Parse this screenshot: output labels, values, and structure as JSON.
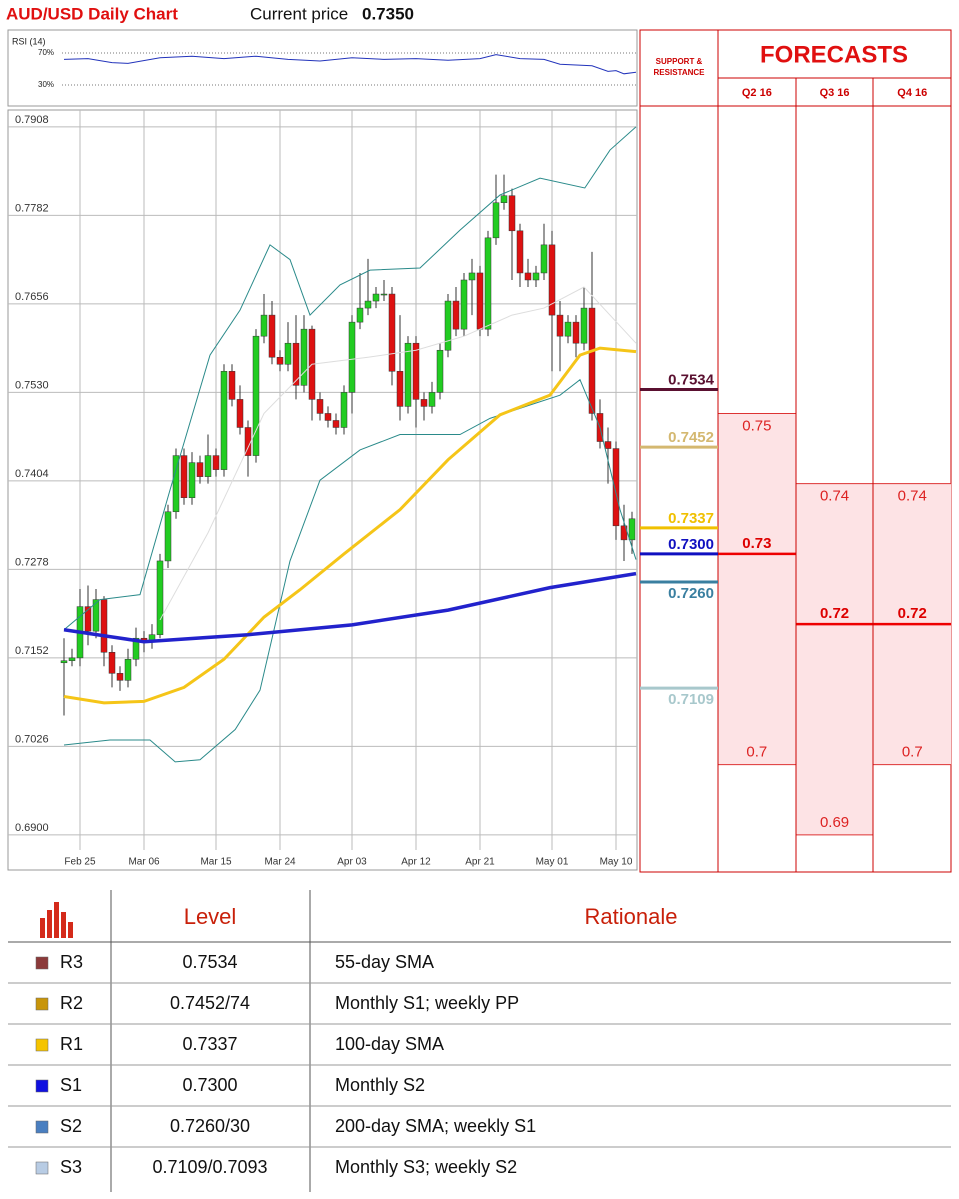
{
  "header": {
    "title": "AUD/USD Daily Chart",
    "price_label": "Current price",
    "price": "0.7350"
  },
  "chart_data": [
    {
      "type": "line",
      "title": "RSI (14)",
      "color": "#2233bb",
      "x": [
        0,
        3,
        6,
        8,
        12,
        16,
        20,
        24,
        28,
        32,
        36,
        40,
        44,
        48,
        52,
        54,
        57,
        60,
        62,
        66,
        68,
        69,
        70,
        71.5
      ],
      "values": [
        62,
        63,
        58,
        57,
        64,
        66,
        63,
        66,
        62,
        60,
        64,
        62,
        63,
        61,
        63,
        68,
        63,
        62,
        56,
        54,
        47,
        48,
        44,
        46
      ],
      "ylim": [
        6.25,
        93.75
      ],
      "yticks": [
        {
          "value": 70,
          "label": "70%"
        },
        {
          "value": 30,
          "label": "30%"
        }
      ]
    },
    {
      "type": "candlestick",
      "grid": true,
      "up_color": "#22cc22",
      "down_color": "#dd1111",
      "categories": [
        null,
        null,
        "Feb 25",
        null,
        null,
        null,
        null,
        null,
        null,
        null,
        "Mar 06",
        null,
        null,
        null,
        null,
        null,
        null,
        null,
        null,
        "Mar 15",
        null,
        null,
        null,
        null,
        null,
        null,
        null,
        "Mar 24",
        null,
        null,
        null,
        null,
        null,
        null,
        null,
        null,
        "Apr 03",
        null,
        null,
        null,
        null,
        null,
        null,
        null,
        "Apr 12",
        null,
        null,
        null,
        null,
        null,
        null,
        null,
        "Apr 21",
        null,
        null,
        null,
        null,
        null,
        null,
        null,
        null,
        "May 01",
        null,
        null,
        null,
        null,
        null,
        null,
        null,
        "May 10",
        null,
        null
      ],
      "open": [
        0.7145,
        0.7148,
        0.7152,
        0.7225,
        0.719,
        0.7235,
        0.716,
        0.713,
        0.712,
        0.715,
        0.718,
        0.7175,
        0.7185,
        0.729,
        0.736,
        0.744,
        0.738,
        0.743,
        0.741,
        0.744,
        0.742,
        0.756,
        0.752,
        0.748,
        0.744,
        0.761,
        0.764,
        0.758,
        0.757,
        0.76,
        0.754,
        0.762,
        0.752,
        0.75,
        0.749,
        0.748,
        0.753,
        0.763,
        0.765,
        0.766,
        0.767,
        0.767,
        0.756,
        0.751,
        0.76,
        0.752,
        0.751,
        0.753,
        0.759,
        0.766,
        0.762,
        0.769,
        0.77,
        0.762,
        0.775,
        0.78,
        0.781,
        0.776,
        0.77,
        0.769,
        0.77,
        0.774,
        0.764,
        0.761,
        0.763,
        0.76,
        0.765,
        0.75,
        0.746,
        0.745,
        0.734,
        0.732
      ],
      "high": [
        0.718,
        0.7165,
        0.725,
        0.7255,
        0.725,
        0.724,
        0.717,
        0.714,
        0.7165,
        0.7195,
        0.719,
        0.72,
        0.73,
        0.737,
        0.745,
        0.745,
        0.7445,
        0.744,
        0.747,
        0.745,
        0.757,
        0.757,
        0.754,
        0.749,
        0.762,
        0.767,
        0.766,
        0.759,
        0.763,
        0.764,
        0.764,
        0.7625,
        0.753,
        0.751,
        0.75,
        0.754,
        0.764,
        0.77,
        0.772,
        0.768,
        0.769,
        0.768,
        0.764,
        0.761,
        0.761,
        0.753,
        0.7545,
        0.76,
        0.767,
        0.768,
        0.77,
        0.772,
        0.771,
        0.776,
        0.784,
        0.784,
        0.782,
        0.777,
        0.772,
        0.771,
        0.777,
        0.776,
        0.766,
        0.764,
        0.764,
        0.768,
        0.773,
        0.752,
        0.748,
        0.746,
        0.737,
        0.736
      ],
      "low": [
        0.707,
        0.714,
        0.714,
        0.717,
        0.718,
        0.714,
        0.711,
        0.7105,
        0.711,
        0.714,
        0.716,
        0.7165,
        0.718,
        0.728,
        0.735,
        0.737,
        0.737,
        0.74,
        0.74,
        0.741,
        0.741,
        0.751,
        0.747,
        0.741,
        0.743,
        0.76,
        0.757,
        0.756,
        0.756,
        0.752,
        0.753,
        0.749,
        0.749,
        0.748,
        0.747,
        0.747,
        0.75,
        0.762,
        0.764,
        0.765,
        0.766,
        0.754,
        0.749,
        0.75,
        0.748,
        0.749,
        0.75,
        0.752,
        0.758,
        0.761,
        0.761,
        0.764,
        0.761,
        0.761,
        0.774,
        0.779,
        0.769,
        0.768,
        0.768,
        0.768,
        0.769,
        0.756,
        0.756,
        0.76,
        0.758,
        0.759,
        0.749,
        0.745,
        0.74,
        0.732,
        0.729,
        0.73
      ],
      "close": [
        0.7148,
        0.7152,
        0.7225,
        0.719,
        0.7235,
        0.716,
        0.713,
        0.712,
        0.715,
        0.718,
        0.7175,
        0.7185,
        0.729,
        0.736,
        0.744,
        0.738,
        0.743,
        0.741,
        0.744,
        0.742,
        0.756,
        0.752,
        0.748,
        0.744,
        0.761,
        0.764,
        0.758,
        0.757,
        0.76,
        0.754,
        0.762,
        0.752,
        0.75,
        0.749,
        0.748,
        0.753,
        0.763,
        0.765,
        0.766,
        0.767,
        0.767,
        0.756,
        0.751,
        0.76,
        0.752,
        0.751,
        0.753,
        0.759,
        0.766,
        0.762,
        0.769,
        0.77,
        0.762,
        0.775,
        0.78,
        0.781,
        0.776,
        0.77,
        0.769,
        0.77,
        0.774,
        0.764,
        0.761,
        0.763,
        0.76,
        0.765,
        0.75,
        0.746,
        0.745,
        0.734,
        0.732,
        0.735
      ],
      "overlays": [
        {
          "color": "#dddddd",
          "width": 1,
          "x": [
            12,
            18,
            25,
            31,
            38,
            44,
            50,
            56,
            60,
            65,
            71.5
          ],
          "values": [
            0.7206,
            0.733,
            0.75,
            0.757,
            0.758,
            0.759,
            0.761,
            0.764,
            0.765,
            0.768,
            0.76
          ]
        },
        {
          "color": "#2a8a8a",
          "width": 1,
          "x": [
            0,
            4.5,
            9.5,
            13.25,
            18.25,
            22,
            25.75,
            28.25,
            30.75,
            34.5,
            38.25,
            44.5,
            49.5,
            54.5,
            59.5,
            65.1,
            68.25,
            71.5
          ],
          "values": [
            0.7192,
            0.7235,
            0.7242,
            0.7391,
            0.7583,
            0.7647,
            0.774,
            0.7719,
            0.764,
            0.7683,
            0.7704,
            0.7707,
            0.7761,
            0.7811,
            0.7835,
            0.7821,
            0.7875,
            0.7908
          ]
        },
        {
          "color": "#2a8a8a",
          "width": 1,
          "x": [
            0,
            5.75,
            10.75,
            13.9,
            17,
            21.4,
            24.5,
            28.25,
            32,
            37,
            42,
            49.5,
            53.25,
            58.25,
            62,
            64.5,
            67,
            69.5,
            71.5
          ],
          "values": [
            0.7028,
            0.7035,
            0.7035,
            0.7004,
            0.7007,
            0.705,
            0.7106,
            0.729,
            0.7405,
            0.7448,
            0.747,
            0.747,
            0.7493,
            0.7512,
            0.7526,
            0.7548,
            0.748,
            0.7363,
            0.7292
          ]
        },
        {
          "color": "#f5c518",
          "width": 3,
          "x": [
            0,
            5,
            10,
            15,
            20,
            25,
            29.5,
            35,
            42,
            48,
            54.5,
            60.75,
            64.5,
            67,
            71.5
          ],
          "values": [
            0.7097,
            0.7088,
            0.709,
            0.711,
            0.715,
            0.721,
            0.7249,
            0.73,
            0.7363,
            0.7434,
            0.7498,
            0.7526,
            0.7583,
            0.7593,
            0.7588
          ]
        },
        {
          "color": "#2222cc",
          "width": 3.5,
          "x": [
            0,
            10,
            23,
            36,
            48,
            60.75,
            71.5
          ],
          "values": [
            0.7192,
            0.7175,
            0.7185,
            0.7199,
            0.722,
            0.7252,
            0.7272
          ]
        }
      ],
      "ylim": [
        0.685,
        0.7932
      ],
      "yticks": [
        0.7908,
        0.7782,
        0.7656,
        {
          "value": 0.753,
          "label": "0.7530"
        },
        0.7404,
        0.7278,
        0.7152,
        0.7026,
        {
          "value": 0.69,
          "label": "0.6900"
        }
      ]
    }
  ],
  "support_resistance": {
    "title": [
      "SUPPORT &",
      "RESISTANCE"
    ],
    "levels": [
      {
        "value": 0.7534,
        "color": "#5a1030"
      },
      {
        "value": 0.7452,
        "color": "#d4b870"
      },
      {
        "value": 0.7337,
        "color": "#f0c000"
      },
      {
        "value": {
          "value": 0.73,
          "label": "0.7300"
        },
        "color": "#1010c0"
      },
      {
        "value": {
          "value": 0.726,
          "label": "0.7260"
        },
        "color": "#3a7fa0"
      },
      {
        "value": 0.7109,
        "color": "#a8c8cc"
      }
    ]
  },
  "forecasts": {
    "title": "FORECASTS",
    "columns": [
      {
        "label": "Q2 16",
        "high": 0.75,
        "mid": 0.73,
        "low": 0.7
      },
      {
        "label": "Q3 16",
        "high": 0.74,
        "mid": 0.72,
        "low": 0.69
      },
      {
        "label": "Q4 16",
        "high": 0.74,
        "mid": 0.72,
        "low": 0.7
      }
    ]
  },
  "table": {
    "headers": [
      "Level",
      "Rationale"
    ],
    "rows": [
      {
        "color": "#8b3a3a",
        "name": "R3",
        "level": "0.7534",
        "rationale": "55-day SMA"
      },
      {
        "color": "#c8950a",
        "name": "R2",
        "level": "0.7452/74",
        "rationale": "Monthly S1; weekly PP"
      },
      {
        "color": "#f5c400",
        "name": "R1",
        "level": "0.7337",
        "rationale": "100-day SMA"
      },
      {
        "color": "#1010e0",
        "name": "S1",
        "level": "0.7300",
        "rationale": "Monthly S2"
      },
      {
        "color": "#4a7fc0",
        "name": "S2",
        "level": "0.7260/30",
        "rationale": "200-day SMA; weekly S1"
      },
      {
        "color": "#b8cce4",
        "name": "S3",
        "level": "0.7109/0.7093",
        "rationale": "Monthly S3; weekly S2"
      }
    ]
  }
}
